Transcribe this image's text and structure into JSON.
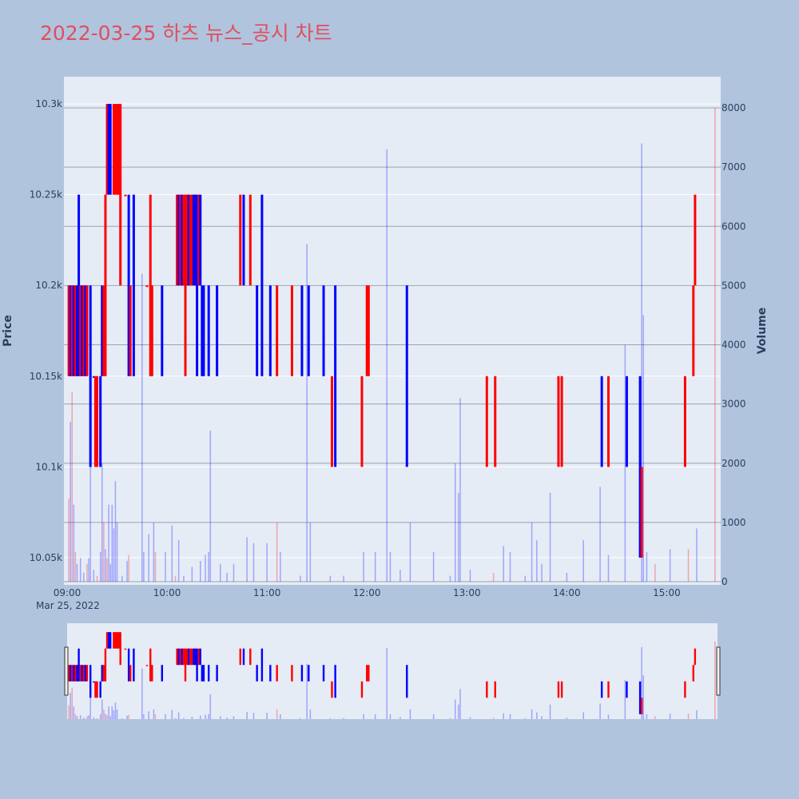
{
  "chart_data": {
    "type": "candlestick",
    "title": "2022-03-25 하츠 뉴스_공시 차트",
    "date_label": "Mar 25, 2022",
    "ylabel": "Price",
    "y2label": "Volume",
    "ylim": [
      10035,
      10315
    ],
    "y2lim": [
      0,
      8500
    ],
    "xlim_minutes": [
      0,
      390
    ],
    "x_ticks": [
      "09:00",
      "10:00",
      "11:00",
      "12:00",
      "13:00",
      "14:00",
      "15:00"
    ],
    "y_ticks": [
      {
        "value": 10050,
        "label": "10.05k"
      },
      {
        "value": 10100,
        "label": "10.1k"
      },
      {
        "value": 10150,
        "label": "10.15k"
      },
      {
        "value": 10200,
        "label": "10.2k"
      },
      {
        "value": 10250,
        "label": "10.25k"
      },
      {
        "value": 10300,
        "label": "10.3k"
      }
    ],
    "y2_ticks": [
      0,
      1000,
      2000,
      3000,
      4000,
      5000,
      6000,
      7000,
      8000
    ],
    "up_color": "#ff0000",
    "down_color": "#0000ff",
    "candles": [
      {
        "t": 1,
        "o": 10150,
        "c": 10200,
        "d": "up"
      },
      {
        "t": 2,
        "o": 10200,
        "c": 10150,
        "d": "down"
      },
      {
        "t": 3,
        "o": 10150,
        "c": 10200,
        "d": "up"
      },
      {
        "t": 4,
        "o": 10200,
        "c": 10150,
        "d": "down"
      },
      {
        "t": 5,
        "o": 10150,
        "c": 10200,
        "d": "up"
      },
      {
        "t": 6,
        "o": 10200,
        "c": 10150,
        "d": "down"
      },
      {
        "t": 7,
        "o": 10150,
        "c": 10250,
        "d": "down"
      },
      {
        "t": 8,
        "o": 10150,
        "c": 10200,
        "d": "up"
      },
      {
        "t": 9,
        "o": 10200,
        "c": 10150,
        "d": "down"
      },
      {
        "t": 10,
        "o": 10150,
        "c": 10200,
        "d": "up"
      },
      {
        "t": 11,
        "o": 10200,
        "c": 10150,
        "d": "down"
      },
      {
        "t": 12,
        "o": 10150,
        "c": 10200,
        "d": "up"
      },
      {
        "t": 14,
        "o": 10200,
        "c": 10100,
        "d": "down"
      },
      {
        "t": 16,
        "o": 10150,
        "c": 10150,
        "d": "down"
      },
      {
        "t": 17,
        "o": 10100,
        "c": 10150,
        "d": "up"
      },
      {
        "t": 18,
        "o": 10150,
        "c": 10100,
        "d": "up"
      },
      {
        "t": 20,
        "o": 10150,
        "c": 10100,
        "d": "down"
      },
      {
        "t": 21,
        "o": 10150,
        "c": 10200,
        "d": "down"
      },
      {
        "t": 22,
        "o": 10200,
        "c": 10150,
        "d": "up"
      },
      {
        "t": 23,
        "o": 10150,
        "c": 10250,
        "d": "up"
      },
      {
        "t": 24,
        "o": 10250,
        "c": 10300,
        "d": "up"
      },
      {
        "t": 25,
        "o": 10300,
        "c": 10250,
        "d": "down"
      },
      {
        "t": 26,
        "o": 10250,
        "c": 10300,
        "d": "down"
      },
      {
        "t": 28,
        "o": 10300,
        "c": 10250,
        "d": "up"
      },
      {
        "t": 29,
        "o": 10250,
        "c": 10300,
        "d": "up"
      },
      {
        "t": 30,
        "o": 10300,
        "c": 10250,
        "d": "up"
      },
      {
        "t": 31,
        "o": 10250,
        "c": 10300,
        "d": "up"
      },
      {
        "t": 32,
        "o": 10300,
        "c": 10200,
        "d": "up"
      },
      {
        "t": 35,
        "o": 10250,
        "c": 10250,
        "d": "up"
      },
      {
        "t": 37,
        "o": 10250,
        "c": 10150,
        "d": "down"
      },
      {
        "t": 38,
        "o": 10150,
        "c": 10200,
        "d": "up"
      },
      {
        "t": 40,
        "o": 10250,
        "c": 10150,
        "d": "down"
      },
      {
        "t": 48,
        "o": 10200,
        "c": 10200,
        "d": "up"
      },
      {
        "t": 50,
        "o": 10150,
        "c": 10250,
        "d": "up"
      },
      {
        "t": 51,
        "o": 10200,
        "c": 10150,
        "d": "up"
      },
      {
        "t": 57,
        "o": 10200,
        "c": 10150,
        "d": "down"
      },
      {
        "t": 66,
        "o": 10200,
        "c": 10250,
        "d": "up"
      },
      {
        "t": 67,
        "o": 10250,
        "c": 10200,
        "d": "down"
      },
      {
        "t": 68,
        "o": 10200,
        "c": 10250,
        "d": "up"
      },
      {
        "t": 69,
        "o": 10250,
        "c": 10200,
        "d": "down"
      },
      {
        "t": 70,
        "o": 10200,
        "c": 10250,
        "d": "up"
      },
      {
        "t": 71,
        "o": 10150,
        "c": 10250,
        "d": "up"
      },
      {
        "t": 72,
        "o": 10250,
        "c": 10200,
        "d": "up"
      },
      {
        "t": 73,
        "o": 10200,
        "c": 10250,
        "d": "down"
      },
      {
        "t": 74,
        "o": 10250,
        "c": 10200,
        "d": "up"
      },
      {
        "t": 75,
        "o": 10200,
        "c": 10250,
        "d": "up"
      },
      {
        "t": 76,
        "o": 10250,
        "c": 10200,
        "d": "down"
      },
      {
        "t": 77,
        "o": 10200,
        "c": 10250,
        "d": "down"
      },
      {
        "t": 78,
        "o": 10250,
        "c": 10150,
        "d": "down"
      },
      {
        "t": 79,
        "o": 10200,
        "c": 10250,
        "d": "up"
      },
      {
        "t": 80,
        "o": 10250,
        "c": 10200,
        "d": "down"
      },
      {
        "t": 81,
        "o": 10150,
        "c": 10200,
        "d": "down"
      },
      {
        "t": 82,
        "o": 10200,
        "c": 10150,
        "d": "down"
      },
      {
        "t": 85,
        "o": 10200,
        "c": 10150,
        "d": "down"
      },
      {
        "t": 90,
        "o": 10200,
        "c": 10150,
        "d": "down"
      },
      {
        "t": 104,
        "o": 10200,
        "c": 10250,
        "d": "up"
      },
      {
        "t": 106,
        "o": 10250,
        "c": 10200,
        "d": "down"
      },
      {
        "t": 110,
        "o": 10250,
        "c": 10200,
        "d": "up"
      },
      {
        "t": 114,
        "o": 10200,
        "c": 10150,
        "d": "down"
      },
      {
        "t": 117,
        "o": 10250,
        "c": 10150,
        "d": "down"
      },
      {
        "t": 122,
        "o": 10200,
        "c": 10150,
        "d": "down"
      },
      {
        "t": 126,
        "o": 10200,
        "c": 10150,
        "d": "up"
      },
      {
        "t": 135,
        "o": 10200,
        "c": 10150,
        "d": "up"
      },
      {
        "t": 141,
        "o": 10200,
        "c": 10150,
        "d": "down"
      },
      {
        "t": 145,
        "o": 10200,
        "c": 10150,
        "d": "down"
      },
      {
        "t": 154,
        "o": 10200,
        "c": 10150,
        "d": "down"
      },
      {
        "t": 159,
        "o": 10150,
        "c": 10100,
        "d": "up"
      },
      {
        "t": 161,
        "o": 10200,
        "c": 10100,
        "d": "down"
      },
      {
        "t": 177,
        "o": 10150,
        "c": 10100,
        "d": "up"
      },
      {
        "t": 180,
        "o": 10150,
        "c": 10200,
        "d": "up"
      },
      {
        "t": 181,
        "o": 10200,
        "c": 10150,
        "d": "up"
      },
      {
        "t": 204,
        "o": 10200,
        "c": 10100,
        "d": "down"
      },
      {
        "t": 252,
        "o": 10150,
        "c": 10100,
        "d": "up"
      },
      {
        "t": 257,
        "o": 10150,
        "c": 10100,
        "d": "up"
      },
      {
        "t": 295,
        "o": 10150,
        "c": 10100,
        "d": "up"
      },
      {
        "t": 297,
        "o": 10150,
        "c": 10100,
        "d": "up"
      },
      {
        "t": 321,
        "o": 10150,
        "c": 10100,
        "d": "down"
      },
      {
        "t": 325,
        "o": 10150,
        "c": 10100,
        "d": "up"
      },
      {
        "t": 336,
        "o": 10150,
        "c": 10100,
        "d": "down"
      },
      {
        "t": 344,
        "o": 10150,
        "c": 10050,
        "d": "down"
      },
      {
        "t": 345,
        "o": 10100,
        "c": 10050,
        "d": "up"
      },
      {
        "t": 371,
        "o": 10150,
        "c": 10100,
        "d": "up"
      },
      {
        "t": 376,
        "o": 10150,
        "c": 10200,
        "d": "up"
      },
      {
        "t": 377,
        "o": 10200,
        "c": 10250,
        "d": "up"
      }
    ],
    "volume": [
      {
        "t": 1,
        "v": 1400,
        "d": "up"
      },
      {
        "t": 2,
        "v": 2700,
        "d": "down"
      },
      {
        "t": 3,
        "v": 3200,
        "d": "up"
      },
      {
        "t": 4,
        "v": 1300,
        "d": "down"
      },
      {
        "t": 5,
        "v": 500,
        "d": "up"
      },
      {
        "t": 6,
        "v": 300,
        "d": "down"
      },
      {
        "t": 8,
        "v": 400,
        "d": "down"
      },
      {
        "t": 10,
        "v": 150,
        "d": "down"
      },
      {
        "t": 12,
        "v": 300,
        "d": "up"
      },
      {
        "t": 13,
        "v": 400,
        "d": "down"
      },
      {
        "t": 14,
        "v": 2200,
        "d": "down"
      },
      {
        "t": 16,
        "v": 200,
        "d": "down"
      },
      {
        "t": 18,
        "v": 100,
        "d": "up"
      },
      {
        "t": 20,
        "v": 500,
        "d": "down"
      },
      {
        "t": 21,
        "v": 2000,
        "d": "down"
      },
      {
        "t": 22,
        "v": 1000,
        "d": "up"
      },
      {
        "t": 23,
        "v": 550,
        "d": "down"
      },
      {
        "t": 24,
        "v": 400,
        "d": "up"
      },
      {
        "t": 25,
        "v": 1300,
        "d": "down"
      },
      {
        "t": 26,
        "v": 300,
        "d": "down"
      },
      {
        "t": 27,
        "v": 1300,
        "d": "down"
      },
      {
        "t": 28,
        "v": 900,
        "d": "down"
      },
      {
        "t": 29,
        "v": 1700,
        "d": "down"
      },
      {
        "t": 30,
        "v": 1000,
        "d": "down"
      },
      {
        "t": 33,
        "v": 100,
        "d": "down"
      },
      {
        "t": 36,
        "v": 350,
        "d": "down"
      },
      {
        "t": 37,
        "v": 450,
        "d": "up"
      },
      {
        "t": 45,
        "v": 5200,
        "d": "down"
      },
      {
        "t": 46,
        "v": 500,
        "d": "down"
      },
      {
        "t": 49,
        "v": 800,
        "d": "down"
      },
      {
        "t": 52,
        "v": 1000,
        "d": "down"
      },
      {
        "t": 53,
        "v": 500,
        "d": "up"
      },
      {
        "t": 59,
        "v": 500,
        "d": "down"
      },
      {
        "t": 63,
        "v": 950,
        "d": "down"
      },
      {
        "t": 65,
        "v": 100,
        "d": "up"
      },
      {
        "t": 67,
        "v": 700,
        "d": "down"
      },
      {
        "t": 70,
        "v": 100,
        "d": "down"
      },
      {
        "t": 75,
        "v": 250,
        "d": "down"
      },
      {
        "t": 80,
        "v": 350,
        "d": "down"
      },
      {
        "t": 83,
        "v": 450,
        "d": "down"
      },
      {
        "t": 85,
        "v": 500,
        "d": "down"
      },
      {
        "t": 86,
        "v": 2550,
        "d": "down"
      },
      {
        "t": 92,
        "v": 300,
        "d": "down"
      },
      {
        "t": 96,
        "v": 150,
        "d": "down"
      },
      {
        "t": 100,
        "v": 300,
        "d": "down"
      },
      {
        "t": 108,
        "v": 750,
        "d": "down"
      },
      {
        "t": 112,
        "v": 650,
        "d": "down"
      },
      {
        "t": 120,
        "v": 650,
        "d": "down"
      },
      {
        "t": 126,
        "v": 1000,
        "d": "up"
      },
      {
        "t": 128,
        "v": 500,
        "d": "down"
      },
      {
        "t": 140,
        "v": 100,
        "d": "down"
      },
      {
        "t": 144,
        "v": 5700,
        "d": "down"
      },
      {
        "t": 146,
        "v": 1000,
        "d": "down"
      },
      {
        "t": 158,
        "v": 100,
        "d": "down"
      },
      {
        "t": 166,
        "v": 100,
        "d": "down"
      },
      {
        "t": 178,
        "v": 500,
        "d": "down"
      },
      {
        "t": 185,
        "v": 500,
        "d": "down"
      },
      {
        "t": 192,
        "v": 7300,
        "d": "down"
      },
      {
        "t": 194,
        "v": 500,
        "d": "down"
      },
      {
        "t": 200,
        "v": 200,
        "d": "down"
      },
      {
        "t": 206,
        "v": 1000,
        "d": "down"
      },
      {
        "t": 220,
        "v": 500,
        "d": "down"
      },
      {
        "t": 230,
        "v": 100,
        "d": "down"
      },
      {
        "t": 233,
        "v": 2000,
        "d": "down"
      },
      {
        "t": 235,
        "v": 1500,
        "d": "down"
      },
      {
        "t": 236,
        "v": 3100,
        "d": "down"
      },
      {
        "t": 242,
        "v": 200,
        "d": "down"
      },
      {
        "t": 256,
        "v": 150,
        "d": "up"
      },
      {
        "t": 262,
        "v": 600,
        "d": "down"
      },
      {
        "t": 266,
        "v": 500,
        "d": "down"
      },
      {
        "t": 275,
        "v": 100,
        "d": "down"
      },
      {
        "t": 279,
        "v": 1000,
        "d": "down"
      },
      {
        "t": 282,
        "v": 700,
        "d": "down"
      },
      {
        "t": 285,
        "v": 300,
        "d": "down"
      },
      {
        "t": 290,
        "v": 1500,
        "d": "down"
      },
      {
        "t": 300,
        "v": 150,
        "d": "down"
      },
      {
        "t": 310,
        "v": 700,
        "d": "down"
      },
      {
        "t": 320,
        "v": 1600,
        "d": "down"
      },
      {
        "t": 325,
        "v": 450,
        "d": "down"
      },
      {
        "t": 335,
        "v": 4000,
        "d": "down"
      },
      {
        "t": 345,
        "v": 7400,
        "d": "down"
      },
      {
        "t": 346,
        "v": 4500,
        "d": "down"
      },
      {
        "t": 348,
        "v": 500,
        "d": "down"
      },
      {
        "t": 353,
        "v": 300,
        "d": "up"
      },
      {
        "t": 362,
        "v": 550,
        "d": "down"
      },
      {
        "t": 373,
        "v": 550,
        "d": "up"
      },
      {
        "t": 378,
        "v": 900,
        "d": "down"
      },
      {
        "t": 389,
        "v": 8000,
        "d": "up"
      }
    ]
  }
}
